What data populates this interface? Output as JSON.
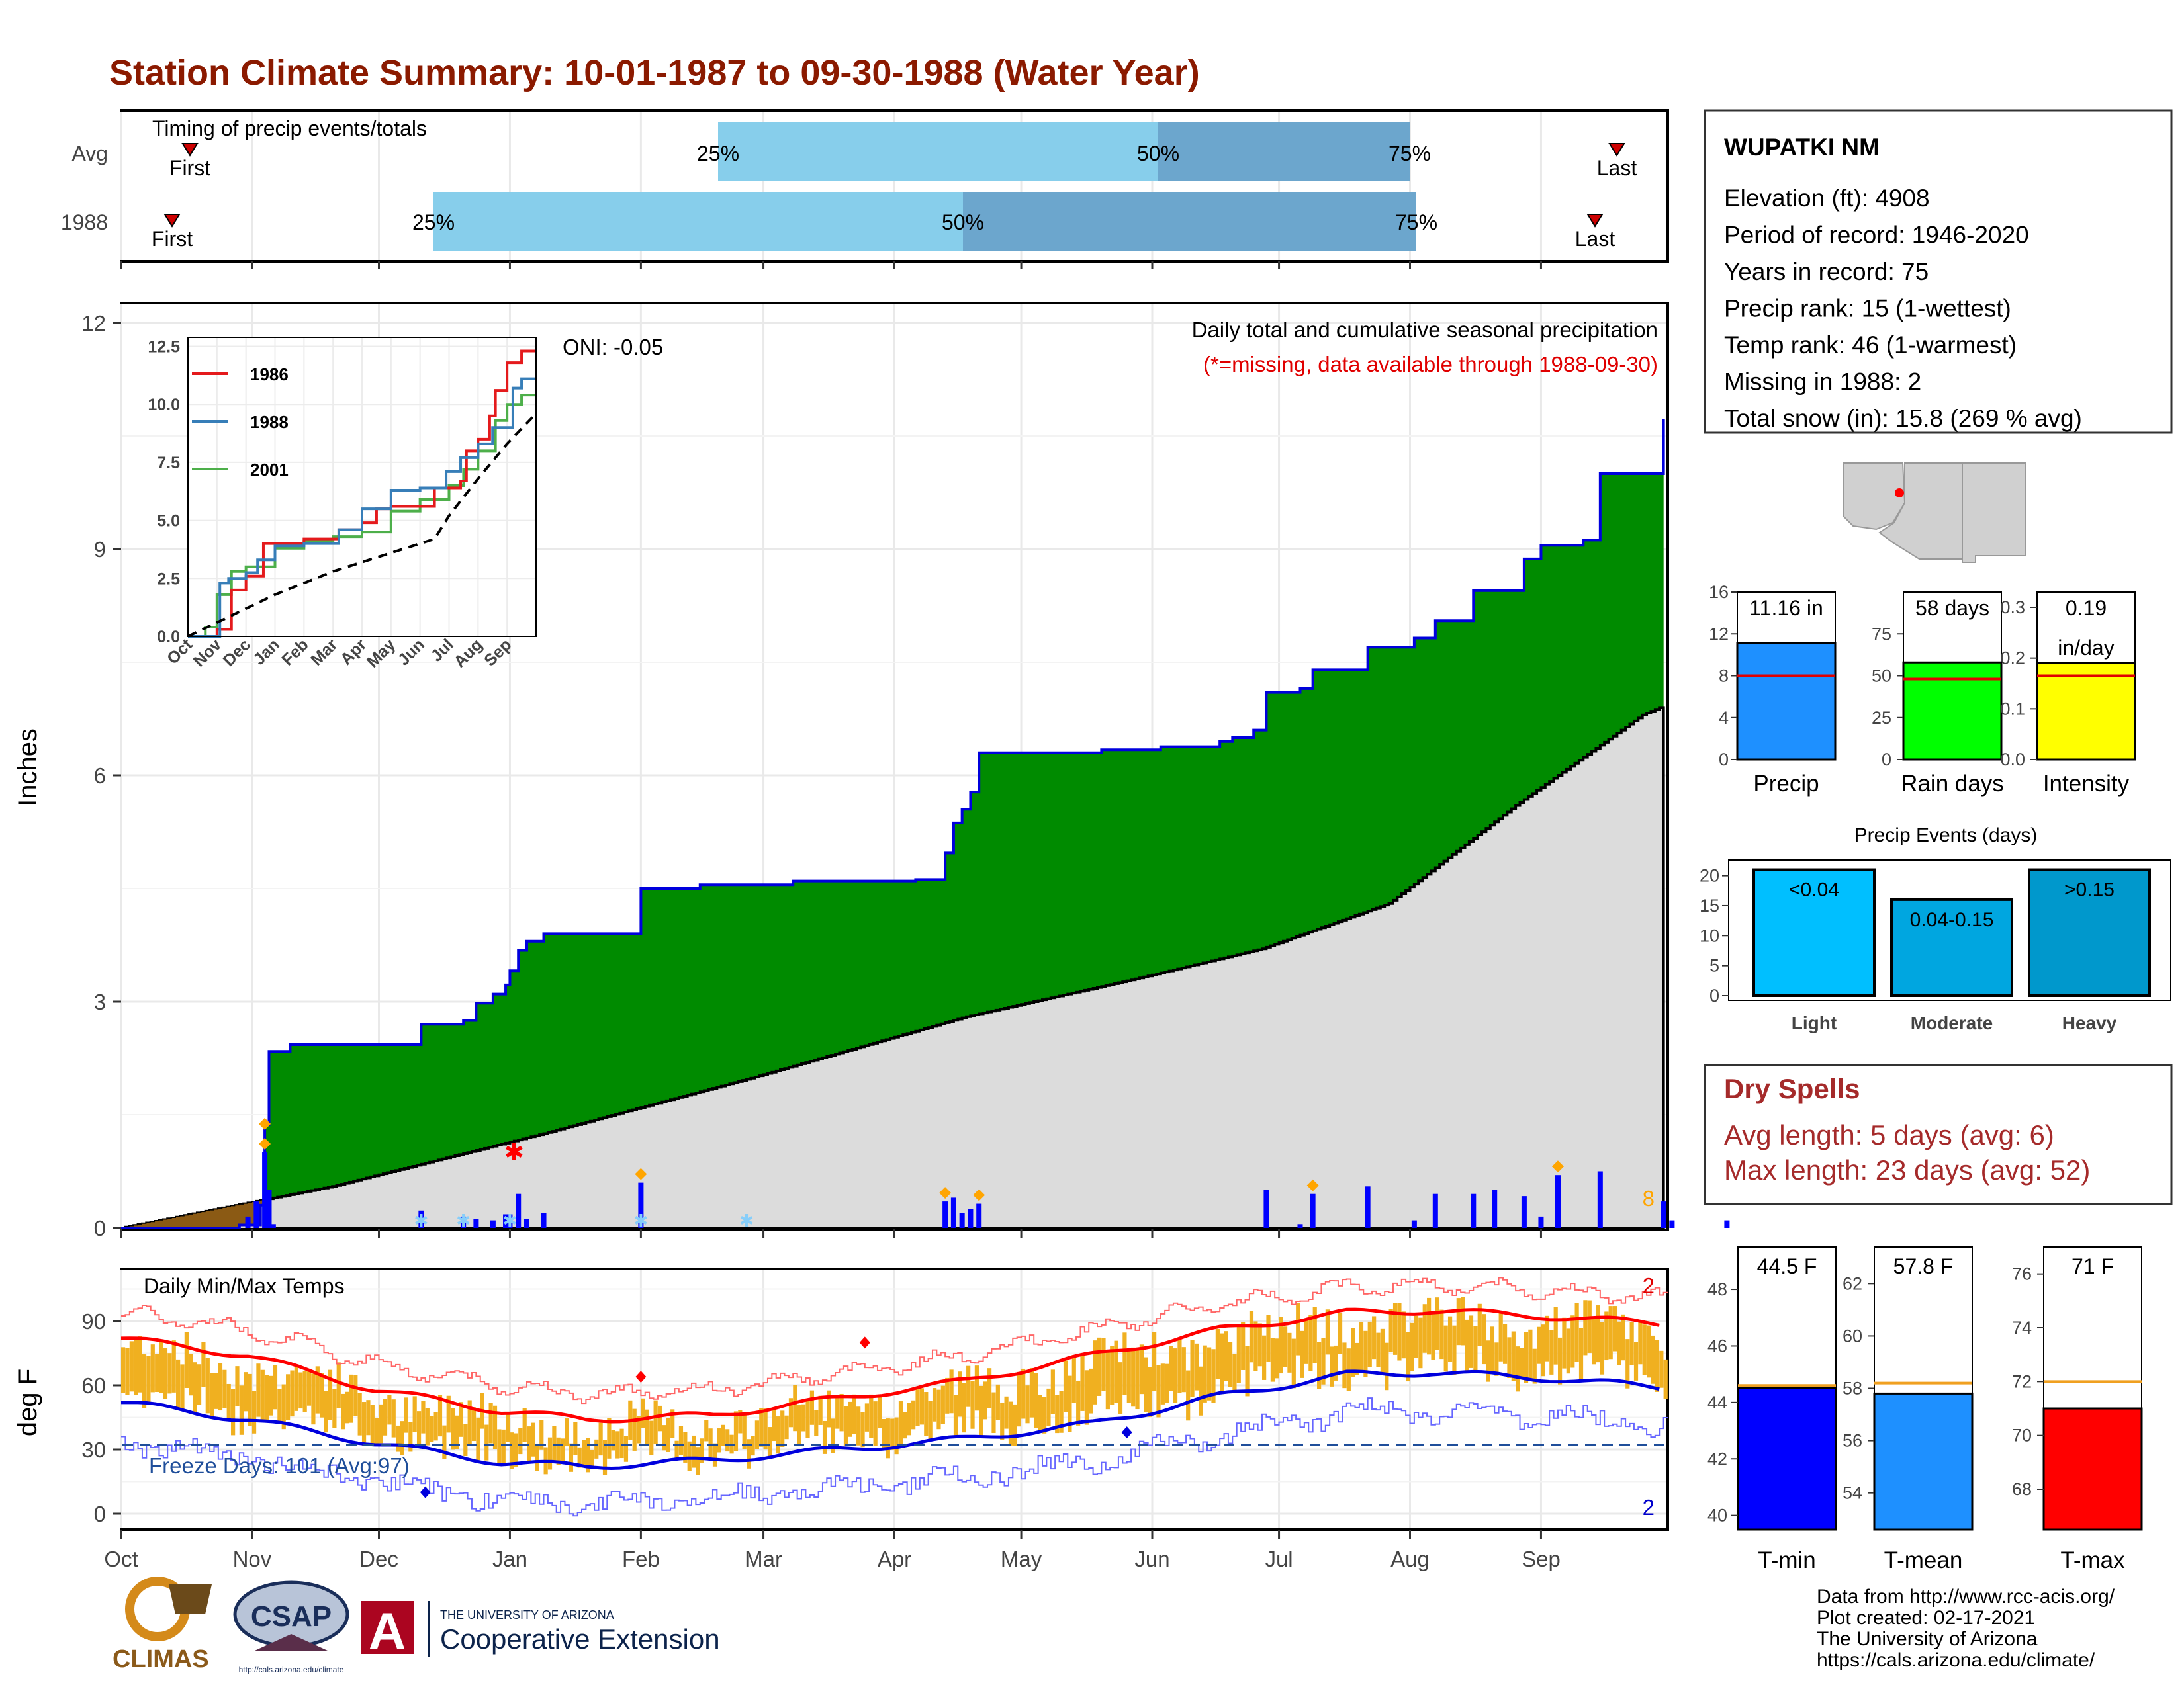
{
  "title": "Station Climate Summary: 10-01-1987 to 09-30-1988 (Water Year)",
  "timing": {
    "title": "Timing of precip events/totals",
    "rows": [
      {
        "label": "Avg",
        "first_label": "First",
        "last_label": "Last",
        "first_x": 287,
        "p25": 1085,
        "p50": 1750,
        "p75": 2130,
        "last_x": 2443,
        "p25_label": "25%",
        "p50_label": "50%",
        "p75_label": "75%"
      },
      {
        "label": "1988",
        "first_label": "First",
        "last_label": "Last",
        "first_x": 260,
        "p25": 655,
        "p50": 1455,
        "p75": 2140,
        "last_x": 2410,
        "p25_label": "25%",
        "p50_label": "50%",
        "p75_label": "75%"
      }
    ]
  },
  "precip_chart": {
    "ylabel": "Inches",
    "yticks": [
      "0",
      "3",
      "6",
      "9",
      "12"
    ],
    "oni": "ONI: -0.05",
    "header1": "Daily total and cumulative seasonal precipitation",
    "header2": "(*=missing, data available through 1988-09-30)",
    "snow_count": "8",
    "cumulative_1988": [
      [
        0,
        0
      ],
      [
        28,
        0.04
      ],
      [
        33,
        0.3
      ],
      [
        34,
        1.37
      ],
      [
        35,
        2.34
      ],
      [
        40,
        2.43
      ],
      [
        71,
        2.7
      ],
      [
        81,
        2.75
      ],
      [
        84,
        2.98
      ],
      [
        88,
        3.1
      ],
      [
        91,
        3.22
      ],
      [
        92,
        3.41
      ],
      [
        94,
        3.68
      ],
      [
        96,
        3.8
      ],
      [
        100,
        3.9
      ],
      [
        123,
        4.5
      ],
      [
        137,
        4.55
      ],
      [
        159,
        4.6
      ],
      [
        188,
        4.62
      ],
      [
        195,
        4.97
      ],
      [
        197,
        5.37
      ],
      [
        199,
        5.55
      ],
      [
        201,
        5.78
      ],
      [
        203,
        6.3
      ],
      [
        232,
        6.34
      ],
      [
        246,
        6.38
      ],
      [
        260,
        6.45
      ],
      [
        263,
        6.5
      ],
      [
        268,
        6.6
      ],
      [
        271,
        7.1
      ],
      [
        279,
        7.15
      ],
      [
        282,
        7.4
      ],
      [
        295,
        7.7
      ],
      [
        306,
        7.82
      ],
      [
        311,
        8.05
      ],
      [
        320,
        8.45
      ],
      [
        332,
        8.87
      ],
      [
        336,
        9.05
      ],
      [
        346,
        9.12
      ],
      [
        350,
        10.0
      ],
      [
        365,
        10.72
      ],
      [
        367,
        10.95
      ],
      [
        370,
        11.02
      ],
      [
        380,
        11.12
      ],
      [
        402,
        11.16
      ]
    ],
    "cumulative_avg": [
      [
        0,
        0
      ],
      [
        50,
        0.55
      ],
      [
        100,
        1.25
      ],
      [
        150,
        2.0
      ],
      [
        200,
        2.8
      ],
      [
        240,
        3.3
      ],
      [
        270,
        3.7
      ],
      [
        300,
        4.3
      ],
      [
        330,
        5.6
      ],
      [
        360,
        6.8
      ],
      [
        402,
        7.85
      ]
    ],
    "daily_bars": [
      [
        30,
        0.15
      ],
      [
        32,
        0.35
      ],
      [
        34,
        1.0
      ],
      [
        35,
        0.5
      ],
      [
        36,
        0.05
      ],
      [
        71,
        0.23
      ],
      [
        81,
        0.15
      ],
      [
        84,
        0.12
      ],
      [
        88,
        0.1
      ],
      [
        91,
        0.18
      ],
      [
        92,
        0.18
      ],
      [
        94,
        0.45
      ],
      [
        96,
        0.12
      ],
      [
        100,
        0.2
      ],
      [
        123,
        0.6
      ],
      [
        195,
        0.35
      ],
      [
        197,
        0.4
      ],
      [
        199,
        0.2
      ],
      [
        201,
        0.25
      ],
      [
        203,
        0.32
      ],
      [
        271,
        0.5
      ],
      [
        279,
        0.05
      ],
      [
        282,
        0.45
      ],
      [
        295,
        0.55
      ],
      [
        306,
        0.1
      ],
      [
        311,
        0.45
      ],
      [
        320,
        0.45
      ],
      [
        325,
        0.5
      ],
      [
        332,
        0.42
      ],
      [
        336,
        0.15
      ],
      [
        340,
        0.7
      ],
      [
        350,
        0.75
      ],
      [
        365,
        0.35
      ],
      [
        367,
        0.1
      ],
      [
        380,
        0.1
      ]
    ],
    "missing_x": 93,
    "missing_y": 1.0
  },
  "inset": {
    "yticks": [
      "0.0",
      "2.5",
      "5.0",
      "7.5",
      "10.0",
      "12.5"
    ],
    "months": [
      "Oct",
      "Nov",
      "Dec",
      "Jan",
      "Feb",
      "Mar",
      "Apr",
      "May",
      "Jun",
      "Jul",
      "Aug",
      "Sep"
    ],
    "legend": [
      {
        "name": "1986",
        "color": "#e41a1c"
      },
      {
        "name": "1988",
        "color": "#377eb8"
      },
      {
        "name": "2001",
        "color": "#4daf4a"
      }
    ],
    "series": {
      "1986": [
        [
          0,
          0
        ],
        [
          1,
          0.3
        ],
        [
          1.5,
          2.0
        ],
        [
          2,
          2.6
        ],
        [
          2.6,
          4.0
        ],
        [
          3,
          4.0
        ],
        [
          4,
          4.2
        ],
        [
          5.2,
          4.6
        ],
        [
          6,
          4.9
        ],
        [
          6.5,
          5.5
        ],
        [
          7,
          5.6
        ],
        [
          8,
          5.6
        ],
        [
          8.5,
          6.4
        ],
        [
          9.4,
          6.7
        ],
        [
          9.6,
          8.0
        ],
        [
          10,
          8.5
        ],
        [
          10.4,
          9.5
        ],
        [
          10.6,
          10.6
        ],
        [
          11,
          11.8
        ],
        [
          11.5,
          12.3
        ],
        [
          12,
          12.3
        ]
      ],
      "1988": [
        [
          0,
          0
        ],
        [
          1.1,
          2.3
        ],
        [
          1.4,
          2.5
        ],
        [
          2,
          2.75
        ],
        [
          2.4,
          3.3
        ],
        [
          3,
          3.9
        ],
        [
          4,
          4.0
        ],
        [
          5.2,
          4.6
        ],
        [
          6.0,
          5.5
        ],
        [
          7,
          6.3
        ],
        [
          8.0,
          6.4
        ],
        [
          8.9,
          7.1
        ],
        [
          9.4,
          7.7
        ],
        [
          10,
          8.3
        ],
        [
          10.5,
          9.0
        ],
        [
          11.2,
          10.7
        ],
        [
          11.5,
          11.1
        ],
        [
          12,
          11.16
        ]
      ],
      "2001": [
        [
          0,
          0
        ],
        [
          0.6,
          0.4
        ],
        [
          1.0,
          1.8
        ],
        [
          1.5,
          2.8
        ],
        [
          2,
          3.0
        ],
        [
          3,
          3.8
        ],
        [
          4,
          4.1
        ],
        [
          5,
          4.3
        ],
        [
          6,
          4.5
        ],
        [
          7,
          5.4
        ],
        [
          8,
          5.9
        ],
        [
          9,
          6.5
        ],
        [
          9.5,
          7.2
        ],
        [
          10,
          8.0
        ],
        [
          10.6,
          9.3
        ],
        [
          11,
          10.0
        ],
        [
          11.5,
          10.4
        ],
        [
          12,
          10.6
        ]
      ],
      "avg": [
        [
          0,
          0
        ],
        [
          1,
          0.6
        ],
        [
          2,
          1.2
        ],
        [
          3,
          1.8
        ],
        [
          4,
          2.3
        ],
        [
          5,
          2.8
        ],
        [
          6,
          3.2
        ],
        [
          7,
          3.6
        ],
        [
          7.5,
          3.8
        ],
        [
          8,
          4.0
        ],
        [
          8.5,
          4.2
        ],
        [
          9,
          5.2
        ],
        [
          10,
          6.8
        ],
        [
          11,
          8.3
        ],
        [
          12,
          9.6
        ]
      ]
    }
  },
  "temp_chart": {
    "ylabel": "deg F",
    "yticks": [
      "0",
      "30",
      "60",
      "90"
    ],
    "title": "Daily Min/Max Temps",
    "freeze_label": "Freeze Days: 101 (Avg:97)",
    "max_count": "2",
    "min_count": "2",
    "avg_max": [
      [
        0,
        82
      ],
      [
        30,
        74
      ],
      [
        60,
        58
      ],
      [
        90,
        48
      ],
      [
        110,
        44
      ],
      [
        140,
        46
      ],
      [
        170,
        54
      ],
      [
        200,
        62
      ],
      [
        230,
        74
      ],
      [
        260,
        86
      ],
      [
        290,
        94
      ],
      [
        310,
        95
      ],
      [
        340,
        92
      ],
      [
        370,
        88
      ],
      [
        402,
        80
      ]
    ],
    "avg_min": [
      [
        0,
        52
      ],
      [
        30,
        44
      ],
      [
        60,
        33
      ],
      [
        90,
        24
      ],
      [
        110,
        22
      ],
      [
        140,
        25
      ],
      [
        170,
        30
      ],
      [
        200,
        35
      ],
      [
        230,
        42
      ],
      [
        260,
        55
      ],
      [
        290,
        65
      ],
      [
        310,
        66
      ],
      [
        340,
        63
      ],
      [
        370,
        58
      ],
      [
        402,
        50
      ]
    ]
  },
  "months_axis": [
    "Oct",
    "Nov",
    "Dec",
    "Jan",
    "Feb",
    "Mar",
    "Apr",
    "May",
    "Jun",
    "Jul",
    "Aug",
    "Sep"
  ],
  "station": {
    "name": "WUPATKI NM",
    "lines": [
      "Elevation (ft): 4908",
      "Period of record: 1946-2020",
      "Years in record: 75",
      "Precip rank: 15 (1-wettest)",
      "Temp rank: 46 (1-warmest)",
      "Missing in 1988: 2",
      "Total snow (in): 15.8 (269 % avg)"
    ]
  },
  "mini_bars": [
    {
      "label": "Precip",
      "value_label": "11.16 in",
      "value": 11.16,
      "avg": 8.0,
      "ymax": 16,
      "ticks": [
        "0",
        "4",
        "8",
        "12",
        "16"
      ],
      "color": "#1e90ff"
    },
    {
      "label": "Rain days",
      "value_label": "58 days",
      "value": 58,
      "avg": 48,
      "ymax": 100,
      "ticks": [
        "0",
        "25",
        "50",
        "75"
      ],
      "color": "#00ff00"
    },
    {
      "label": "Intensity",
      "value_label": "0.19",
      "value_label2": "in/day",
      "value": 0.19,
      "avg": 0.165,
      "ymax": 0.33,
      "ticks": [
        "0.0",
        "0.1",
        "0.2",
        "0.3"
      ],
      "color": "#ffff00"
    }
  ],
  "events": {
    "title": "Precip Events (days)",
    "ticks": [
      "0",
      "5",
      "10",
      "15",
      "20"
    ],
    "bars": [
      {
        "label": "Light",
        "value_label": "<0.04",
        "value": 21,
        "color": "#00bfff"
      },
      {
        "label": "Moderate",
        "value_label": "0.04-0.15",
        "value": 16,
        "color": "#00a6e0"
      },
      {
        "label": "Heavy",
        "value_label": ">0.15",
        "value": 21,
        "color": "#0098cc"
      }
    ]
  },
  "dry_spells": {
    "title": "Dry Spells",
    "line1": "Avg length: 5 days (avg: 6)",
    "line2": "Max length: 23 days (avg: 52)"
  },
  "temp_bars": [
    {
      "label": "T-min",
      "value_label": "44.5 F",
      "value": 44.5,
      "avg": 44.6,
      "ymin": 39.5,
      "ymax": 49.5,
      "ticks": [
        "40",
        "42",
        "44",
        "46",
        "48"
      ],
      "color": "#0000ff"
    },
    {
      "label": "T-mean",
      "value_label": "57.8 F",
      "value": 57.8,
      "avg": 58.2,
      "ymin": 52.6,
      "ymax": 63.4,
      "ticks": [
        "54",
        "56",
        "58",
        "60",
        "62"
      ],
      "color": "#1e90ff"
    },
    {
      "label": "T-max",
      "value_label": "71 F",
      "value": 71.0,
      "avg": 72.0,
      "ymin": 66.5,
      "ymax": 77.0,
      "ticks": [
        "68",
        "70",
        "72",
        "74",
        "76"
      ],
      "color": "#ff0000"
    }
  ],
  "footer": {
    "lines": [
      "Data from http://www.rcc-acis.org/",
      "Plot created: 02-17-2021",
      "The University of Arizona",
      "https://cals.arizona.edu/climate/"
    ],
    "logo1": "CLIMAS",
    "logo2": "CSAP",
    "logo2_sub": "http://cals.arizona.edu/climate",
    "logo3_small": "THE UNIVERSITY OF ARIZONA",
    "logo3_big": "Cooperative Extension",
    "logo3_mark": "A"
  }
}
